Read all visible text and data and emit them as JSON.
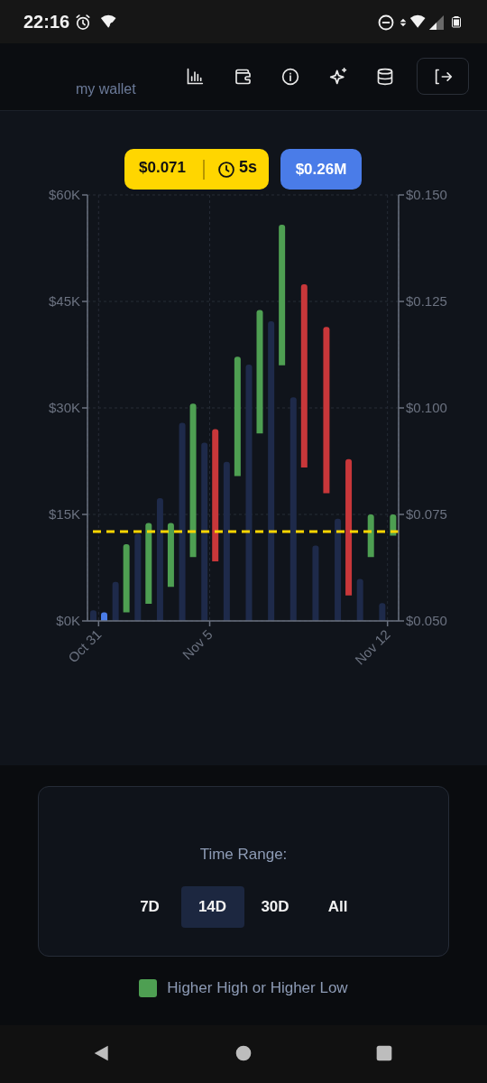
{
  "chart_data": {
    "type": "bar",
    "categories": [
      "Oct 31",
      null,
      null,
      null,
      null,
      "Nov 5",
      null,
      null,
      null,
      null,
      null,
      null,
      null,
      "Nov 12"
    ],
    "series": [
      {
        "color": "#1e2a4a",
        "values": [
          1500,
          5500,
          12300,
          17300,
          27900,
          25100,
          22400,
          36100,
          42200,
          31500,
          10600,
          14400,
          5900,
          2500
        ]
      },
      {
        "name": "Higher High or Higher Low",
        "axis": "y2",
        "color": "#4e9f52",
        "base": [
          null,
          0.052,
          0.054,
          0.058,
          0.065,
          null,
          0.084,
          0.094,
          0.11,
          null,
          null,
          null,
          0.065,
          0.07
        ],
        "values": [
          null,
          0.016,
          0.019,
          0.015,
          0.036,
          null,
          0.028,
          0.029,
          0.033,
          null,
          null,
          null,
          0.01,
          0.005
        ]
      },
      {
        "axis": "y2",
        "color": "#c8373a",
        "base": [
          null,
          null,
          null,
          null,
          null,
          0.064,
          null,
          null,
          null,
          0.086,
          0.08,
          0.056,
          null,
          null
        ],
        "values": [
          null,
          null,
          null,
          null,
          null,
          0.031,
          null,
          null,
          null,
          0.043,
          0.039,
          0.032,
          null,
          null
        ]
      },
      {
        "axis": "y2",
        "color": "#4a7ce8",
        "base": [
          0.05,
          null,
          null,
          null,
          null,
          null,
          null,
          null,
          null,
          null,
          null,
          null,
          null,
          null
        ],
        "values": [
          0.002,
          null,
          null,
          null,
          null,
          null,
          null,
          null,
          null,
          null,
          null,
          null,
          null,
          null
        ]
      }
    ],
    "ylim": [
      0,
      60000
    ],
    "yticks": [
      {
        "value": 0,
        "label": "$0K"
      },
      {
        "value": 15000,
        "label": "$15K"
      },
      {
        "value": 30000,
        "label": "$30K"
      },
      {
        "value": 45000,
        "label": "$45K"
      },
      {
        "value": 60000,
        "label": "$60K"
      }
    ],
    "y2lim": [
      0.05,
      0.15
    ],
    "y2ticks": [
      {
        "value": 0.05,
        "label": "$0.050"
      },
      {
        "value": 0.075,
        "label": "$0.075"
      },
      {
        "value": 0.1,
        "label": "$0.100"
      },
      {
        "value": 0.125,
        "label": "$0.125"
      },
      {
        "value": 0.15,
        "label": "$0.150"
      }
    ],
    "ref_lines": [
      {
        "axis": "y2",
        "value": 0.071,
        "color": "#ffd600",
        "line_style": "dashed"
      }
    ],
    "grid": true,
    "legend": "bottom",
    "annotations": [
      "22:16",
      "my wallet",
      "$0.071",
      "5s",
      "$0.26M",
      "Time Range:",
      "7D",
      "14D",
      "30D",
      "All"
    ]
  }
}
